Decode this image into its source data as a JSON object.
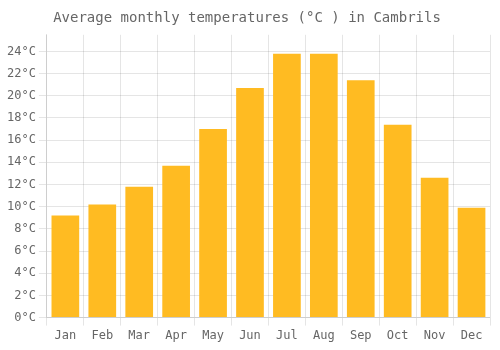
{
  "chart_data": {
    "type": "bar",
    "title": "Average monthly temperatures (°C ) in Cambrils",
    "categories": [
      "Jan",
      "Feb",
      "Mar",
      "Apr",
      "May",
      "Jun",
      "Jul",
      "Aug",
      "Sep",
      "Oct",
      "Nov",
      "Dec"
    ],
    "values": [
      9.2,
      10.2,
      11.8,
      13.7,
      17.0,
      20.7,
      23.8,
      23.8,
      21.4,
      17.4,
      12.6,
      9.9
    ],
    "color": "#FFBB22",
    "ylim": [
      0,
      25.5
    ],
    "yticks": [
      {
        "value": 0,
        "label": "0°C"
      },
      {
        "value": 2,
        "label": "2°C"
      },
      {
        "value": 4,
        "label": "4°C"
      },
      {
        "value": 6,
        "label": "6°C"
      },
      {
        "value": 8,
        "label": "8°C"
      },
      {
        "value": 10,
        "label": "10°C"
      },
      {
        "value": 12,
        "label": "12°C"
      },
      {
        "value": 14,
        "label": "14°C"
      },
      {
        "value": 16,
        "label": "16°C"
      },
      {
        "value": 18,
        "label": "18°C"
      },
      {
        "value": 20,
        "label": "20°C"
      },
      {
        "value": 22,
        "label": "22°C"
      },
      {
        "value": 24,
        "label": "24°C"
      }
    ],
    "grid": true
  }
}
